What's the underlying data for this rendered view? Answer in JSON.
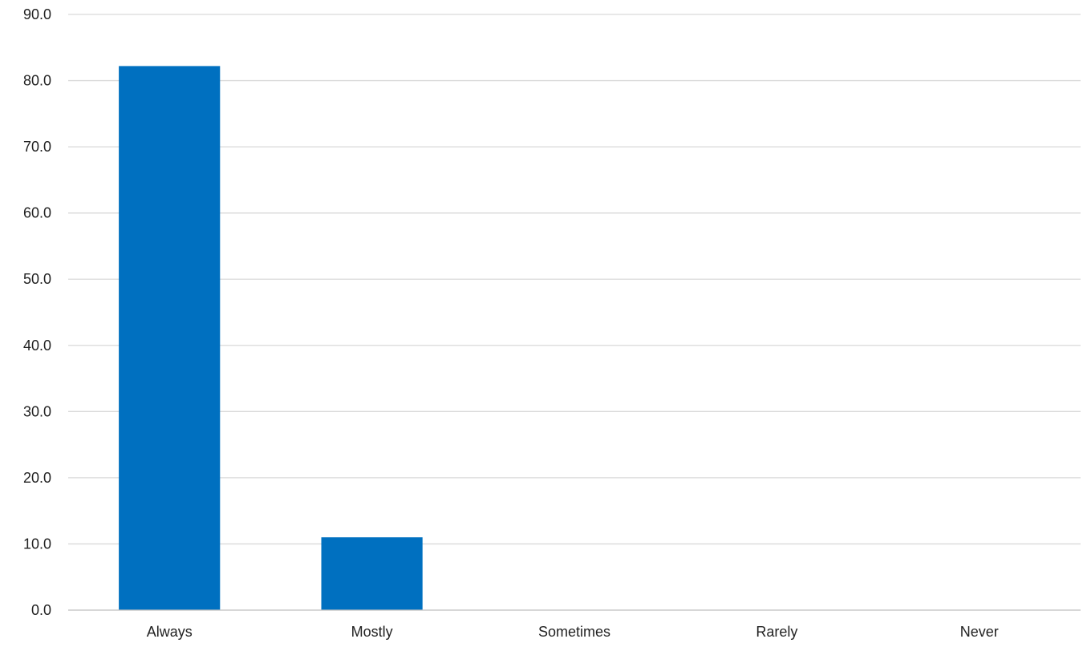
{
  "chart_data": {
    "type": "bar",
    "title": "",
    "xlabel": "",
    "ylabel": "",
    "categories": [
      "Always",
      "Mostly",
      "Sometimes",
      "Rarely",
      "Never"
    ],
    "values": [
      82.2,
      11.0,
      0.0,
      0.0,
      0.0
    ],
    "ylim": [
      0,
      90
    ],
    "yticks": [
      "0.0",
      "10.0",
      "20.0",
      "30.0",
      "40.0",
      "50.0",
      "60.0",
      "70.0",
      "80.0",
      "90.0"
    ],
    "grid": true,
    "legend": "none",
    "bar_color": "#0070C0"
  }
}
